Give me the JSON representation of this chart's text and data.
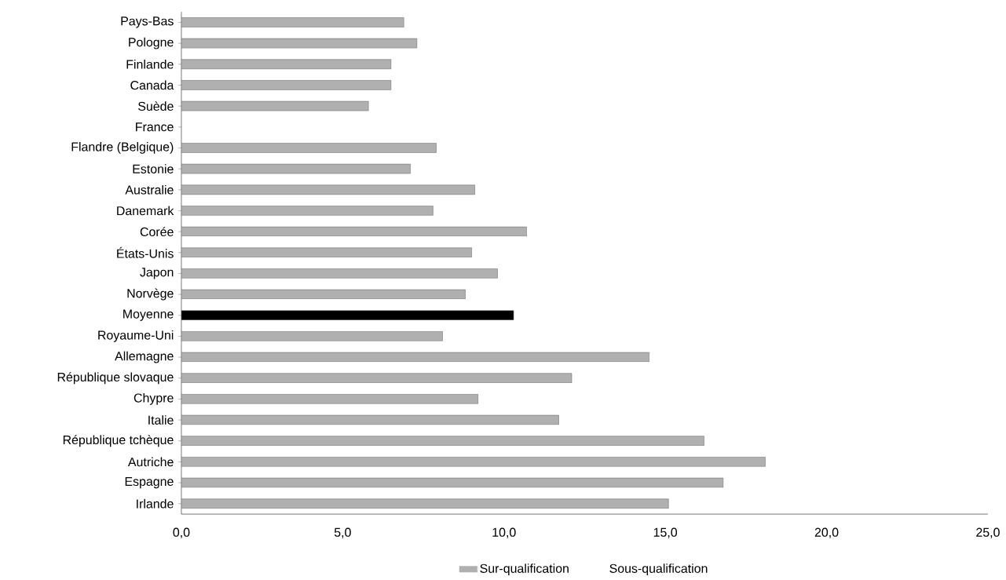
{
  "chart_data": {
    "type": "bar",
    "orientation": "horizontal",
    "categories": [
      "Pays-Bas",
      "Pologne",
      "Finlande",
      "Canada",
      "Suède",
      "France",
      "Flandre (Belgique)",
      "Estonie",
      "Australie",
      "Danemark",
      "Corée",
      "États-Unis",
      "Japon",
      "Norvège",
      "Moyenne",
      "Royaume-Uni",
      "Allemagne",
      "République slovaque",
      "Chypre",
      "Italie",
      "République tchèque",
      "Autriche",
      "Espagne",
      "Irlande"
    ],
    "series": [
      {
        "name": "Sur-qualification",
        "color": "#b0b0b0",
        "colors": [
          "#b0b0b0",
          "#b0b0b0",
          "#b0b0b0",
          "#b0b0b0",
          "#b0b0b0",
          "#b0b0b0",
          "#b0b0b0",
          "#b0b0b0",
          "#b0b0b0",
          "#b0b0b0",
          "#b0b0b0",
          "#b0b0b0",
          "#b0b0b0",
          "#b0b0b0",
          "#000000",
          "#b0b0b0",
          "#b0b0b0",
          "#b0b0b0",
          "#b0b0b0",
          "#b0b0b0",
          "#b0b0b0",
          "#b0b0b0",
          "#b0b0b0",
          "#b0b0b0"
        ],
        "values": [
          6.9,
          7.3,
          6.5,
          6.5,
          5.8,
          null,
          7.9,
          7.1,
          9.1,
          7.8,
          10.7,
          9.0,
          9.8,
          8.8,
          10.3,
          8.1,
          14.5,
          12.1,
          9.2,
          11.7,
          16.2,
          18.1,
          16.8,
          15.1
        ]
      },
      {
        "name": "Sous-qualification",
        "values": [
          null,
          null,
          null,
          null,
          null,
          null,
          null,
          null,
          null,
          null,
          null,
          null,
          null,
          null,
          null,
          null,
          null,
          null,
          null,
          null,
          null,
          null,
          null,
          null
        ]
      }
    ],
    "xlim": [
      0,
      25
    ],
    "xticks": [
      {
        "value": 0,
        "label": "0,0"
      },
      {
        "value": 5,
        "label": "5,0"
      },
      {
        "value": 10,
        "label": "10,0"
      },
      {
        "value": 15,
        "label": "15,0"
      },
      {
        "value": 20,
        "label": "20,0"
      },
      {
        "value": 25,
        "label": "25,0"
      }
    ],
    "legend": "bottom"
  }
}
